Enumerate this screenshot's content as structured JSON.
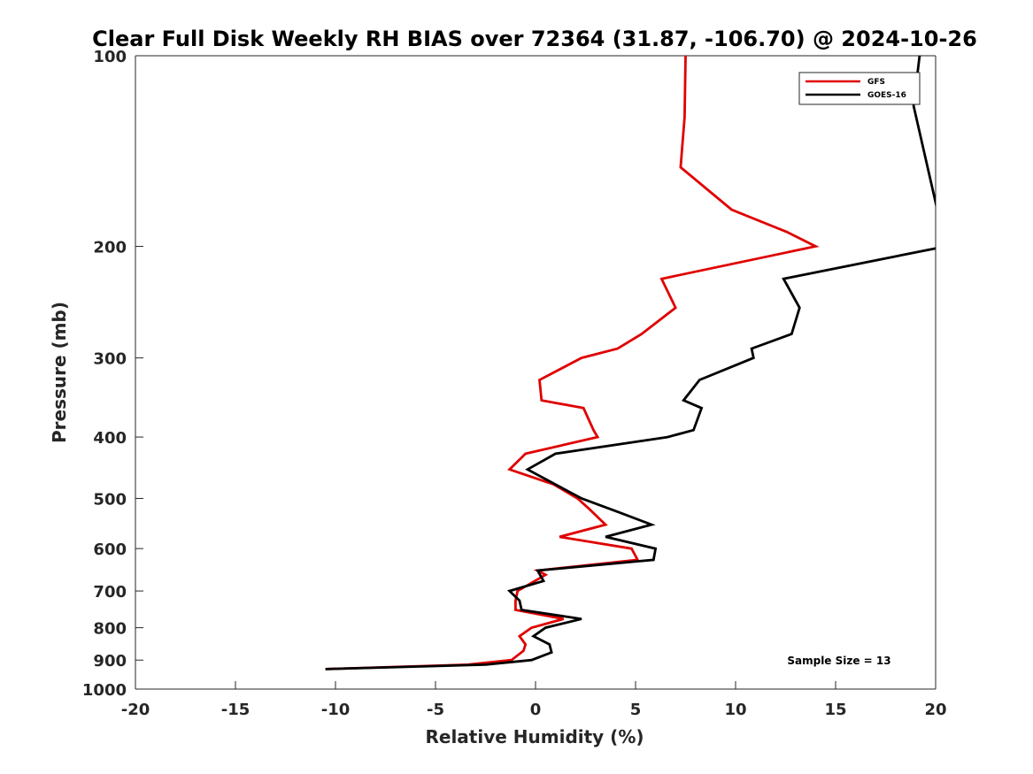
{
  "chart_data": {
    "type": "line",
    "title": "Clear Full Disk Weekly RH BIAS over 72364 (31.87, -106.70) @ 2024-10-26",
    "xlabel": "Relative Humidity (%)",
    "ylabel": "Pressure (mb)",
    "xlim": [
      -20,
      20
    ],
    "ylim": [
      100,
      1000
    ],
    "y_scale": "log",
    "y_reversed": true,
    "x_ticks": [
      -20,
      -15,
      -10,
      -5,
      0,
      5,
      10,
      15,
      20
    ],
    "x_tick_labels": [
      "-20",
      "-15",
      "-10",
      "-5",
      "0",
      "5",
      "10",
      "15",
      "20"
    ],
    "y_ticks": [
      100,
      200,
      300,
      400,
      500,
      600,
      700,
      800,
      900,
      1000
    ],
    "y_tick_labels": [
      "100",
      "200",
      "300",
      "400",
      "500",
      "600",
      "700",
      "800",
      "900",
      "1000"
    ],
    "grid": false,
    "legend_position": "top-right",
    "annotation": "Sample Size = 13",
    "series": [
      {
        "name": "GFS",
        "color": "#e00000",
        "points": [
          [
            7.5,
            100
          ],
          [
            7.45,
            125
          ],
          [
            7.25,
            150
          ],
          [
            9.8,
            175
          ],
          [
            12.6,
            190
          ],
          [
            14.0,
            200
          ],
          [
            6.3,
            225
          ],
          [
            7.0,
            250
          ],
          [
            5.3,
            275
          ],
          [
            4.1,
            290
          ],
          [
            2.3,
            300
          ],
          [
            0.2,
            325
          ],
          [
            0.3,
            350
          ],
          [
            2.4,
            360
          ],
          [
            2.9,
            390
          ],
          [
            3.1,
            400
          ],
          [
            -0.5,
            425
          ],
          [
            -1.3,
            450
          ],
          [
            0.9,
            475
          ],
          [
            2.1,
            500
          ],
          [
            2.7,
            520
          ],
          [
            3.5,
            550
          ],
          [
            1.2,
            575
          ],
          [
            4.8,
            600
          ],
          [
            5.1,
            625
          ],
          [
            0.1,
            650
          ],
          [
            0.5,
            660
          ],
          [
            -0.9,
            700
          ],
          [
            -1.0,
            725
          ],
          [
            -1.0,
            750
          ],
          [
            1.4,
            775
          ],
          [
            -0.2,
            800
          ],
          [
            -0.8,
            825
          ],
          [
            -0.5,
            850
          ],
          [
            -0.6,
            870
          ],
          [
            -1.2,
            900
          ],
          [
            -3.4,
            915
          ],
          [
            -10.5,
            930
          ]
        ]
      },
      {
        "name": "GOES-16",
        "color": "#000000",
        "points": [
          [
            19.2,
            100
          ],
          [
            18.9,
            120
          ],
          [
            20.5,
            200
          ],
          [
            12.4,
            225
          ],
          [
            13.2,
            250
          ],
          [
            12.8,
            275
          ],
          [
            10.8,
            290
          ],
          [
            10.9,
            300
          ],
          [
            8.2,
            325
          ],
          [
            7.4,
            350
          ],
          [
            8.3,
            360
          ],
          [
            7.9,
            390
          ],
          [
            6.6,
            400
          ],
          [
            1.0,
            425
          ],
          [
            -0.4,
            450
          ],
          [
            2.3,
            500
          ],
          [
            4.1,
            525
          ],
          [
            5.8,
            550
          ],
          [
            3.5,
            575
          ],
          [
            6.0,
            600
          ],
          [
            5.9,
            625
          ],
          [
            0.1,
            650
          ],
          [
            0.4,
            675
          ],
          [
            -1.3,
            700
          ],
          [
            -0.8,
            725
          ],
          [
            -0.7,
            750
          ],
          [
            2.3,
            775
          ],
          [
            0.5,
            800
          ],
          [
            -0.1,
            825
          ],
          [
            0.7,
            850
          ],
          [
            0.8,
            875
          ],
          [
            -0.2,
            900
          ],
          [
            -2.5,
            915
          ],
          [
            -10.5,
            930
          ]
        ]
      }
    ]
  }
}
